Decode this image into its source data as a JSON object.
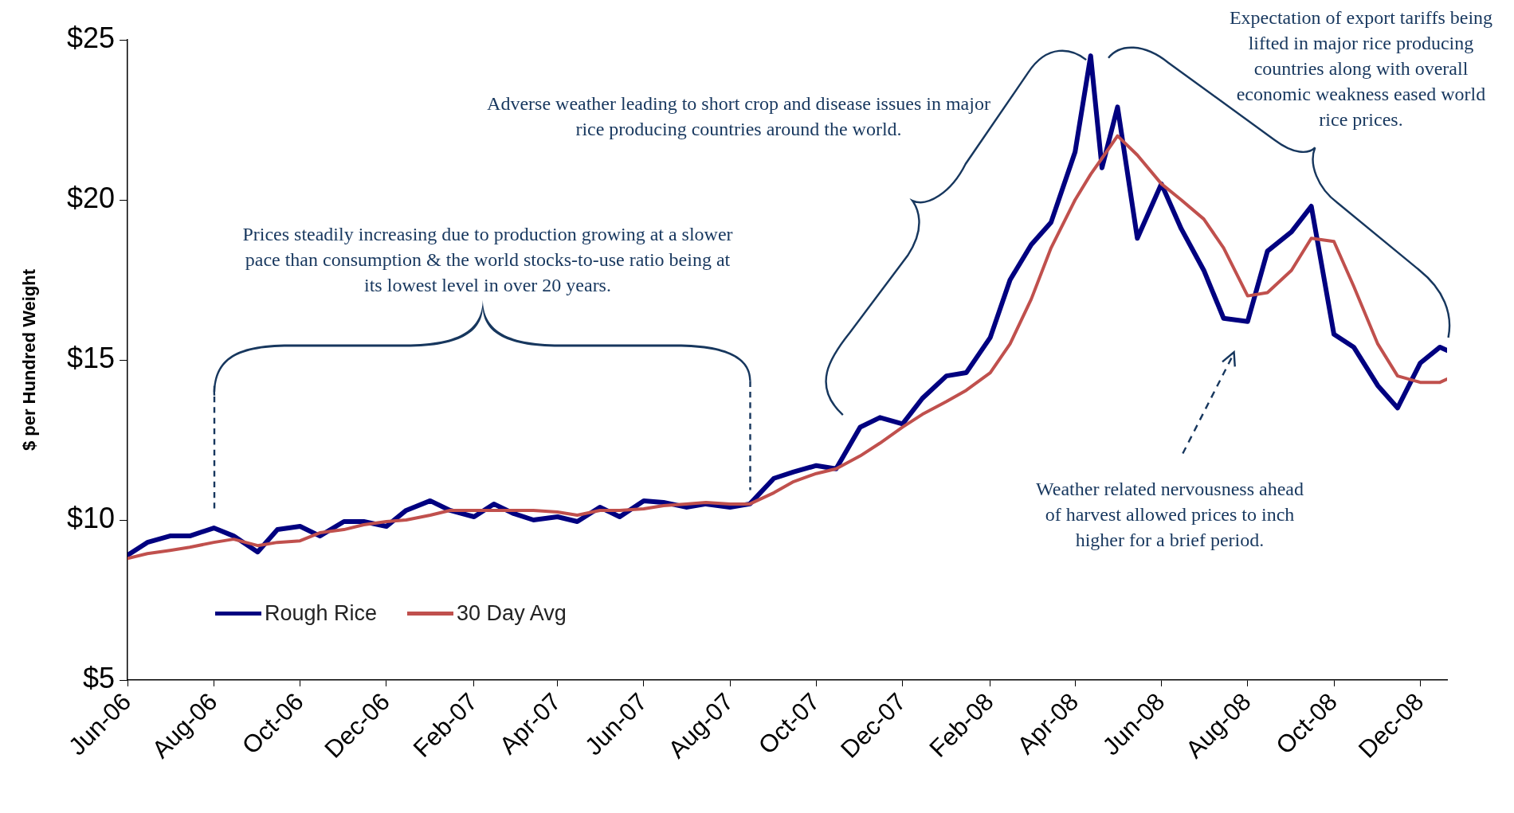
{
  "chart_data": {
    "type": "line",
    "ylabel": "$ per Hundred Weight",
    "x": [
      "2006-06-01",
      "2006-06-15",
      "2006-07-01",
      "2006-07-15",
      "2006-08-01",
      "2006-08-15",
      "2006-09-01",
      "2006-09-15",
      "2006-10-01",
      "2006-10-15",
      "2006-11-01",
      "2006-11-15",
      "2006-12-01",
      "2006-12-15",
      "2007-01-01",
      "2007-01-15",
      "2007-02-01",
      "2007-02-15",
      "2007-03-01",
      "2007-03-15",
      "2007-04-01",
      "2007-04-15",
      "2007-05-01",
      "2007-05-15",
      "2007-06-01",
      "2007-06-15",
      "2007-07-01",
      "2007-07-15",
      "2007-08-01",
      "2007-08-15",
      "2007-09-01",
      "2007-09-15",
      "2007-10-01",
      "2007-10-15",
      "2007-11-01",
      "2007-11-15",
      "2007-12-01",
      "2007-12-15",
      "2008-01-01",
      "2008-01-15",
      "2008-02-01",
      "2008-02-15",
      "2008-03-01",
      "2008-03-15",
      "2008-04-01",
      "2008-04-12",
      "2008-04-20",
      "2008-05-01",
      "2008-05-15",
      "2008-06-01",
      "2008-06-15",
      "2008-07-01",
      "2008-07-15",
      "2008-08-01",
      "2008-08-15",
      "2008-09-01",
      "2008-09-15",
      "2008-10-01",
      "2008-10-15",
      "2008-11-01",
      "2008-11-15",
      "2008-12-01",
      "2008-12-15",
      "2008-12-20"
    ],
    "series": [
      {
        "name": "Rough Rice",
        "color": "#000080",
        "values": [
          8.9,
          9.3,
          9.5,
          9.5,
          9.75,
          9.5,
          9.0,
          9.7,
          9.8,
          9.5,
          9.95,
          9.95,
          9.8,
          10.3,
          10.6,
          10.3,
          10.1,
          10.5,
          10.2,
          10.0,
          10.1,
          9.95,
          10.4,
          10.1,
          10.6,
          10.55,
          10.4,
          10.5,
          10.4,
          10.5,
          11.3,
          11.5,
          11.7,
          11.6,
          12.9,
          13.2,
          13.0,
          13.8,
          14.5,
          14.6,
          15.7,
          17.5,
          18.6,
          19.3,
          21.5,
          24.5,
          21.0,
          22.9,
          18.8,
          20.5,
          19.1,
          17.8,
          16.3,
          16.2,
          18.4,
          19.0,
          19.8,
          15.8,
          15.4,
          14.2,
          13.5,
          14.9,
          15.4,
          15.3
        ]
      },
      {
        "name": "30 Day Avg",
        "color": "#c0504d",
        "values": [
          8.8,
          8.95,
          9.05,
          9.15,
          9.3,
          9.4,
          9.2,
          9.3,
          9.35,
          9.6,
          9.7,
          9.85,
          9.95,
          10.0,
          10.15,
          10.3,
          10.3,
          10.3,
          10.3,
          10.3,
          10.25,
          10.15,
          10.3,
          10.3,
          10.35,
          10.45,
          10.5,
          10.55,
          10.5,
          10.5,
          10.85,
          11.2,
          11.45,
          11.6,
          12.0,
          12.4,
          12.9,
          13.3,
          13.7,
          14.05,
          14.6,
          15.5,
          16.9,
          18.5,
          20.0,
          20.8,
          21.3,
          22.0,
          21.4,
          20.5,
          20.0,
          19.4,
          18.5,
          17.0,
          17.1,
          17.8,
          18.8,
          18.7,
          17.3,
          15.5,
          14.5,
          14.3,
          14.3,
          14.4
        ]
      }
    ],
    "xlim": [
      "2006-06-01",
      "2008-12-20"
    ],
    "xticks": [
      {
        "value": "2006-06-01",
        "label": "Jun-06"
      },
      {
        "value": "2006-08-01",
        "label": "Aug-06"
      },
      {
        "value": "2006-10-01",
        "label": "Oct-06"
      },
      {
        "value": "2006-12-01",
        "label": "Dec-06"
      },
      {
        "value": "2007-02-01",
        "label": "Feb-07"
      },
      {
        "value": "2007-04-01",
        "label": "Apr-07"
      },
      {
        "value": "2007-06-01",
        "label": "Jun-07"
      },
      {
        "value": "2007-08-01",
        "label": "Aug-07"
      },
      {
        "value": "2007-10-01",
        "label": "Oct-07"
      },
      {
        "value": "2007-12-01",
        "label": "Dec-07"
      },
      {
        "value": "2008-02-01",
        "label": "Feb-08"
      },
      {
        "value": "2008-04-01",
        "label": "Apr-08"
      },
      {
        "value": "2008-06-01",
        "label": "Jun-08"
      },
      {
        "value": "2008-08-01",
        "label": "Aug-08"
      },
      {
        "value": "2008-10-01",
        "label": "Oct-08"
      },
      {
        "value": "2008-12-01",
        "label": "Dec-08"
      }
    ],
    "ylim": [
      5,
      25
    ],
    "yticks": [
      {
        "value": 5,
        "label": "$5"
      },
      {
        "value": 10,
        "label": "$10"
      },
      {
        "value": 15,
        "label": "$15"
      },
      {
        "value": 20,
        "label": "$20"
      },
      {
        "value": 25,
        "label": "$25"
      }
    ],
    "grid": false,
    "legend": "bottom left",
    "marker": "none",
    "line_style": "solid",
    "annotations": [
      "Prices steadily increasing due to production growing at a slower pace than consumption & the world stocks-to-use ratio being at its lowest level in over 20 years.",
      "Adverse weather leading to short crop and disease issues in major rice producing countries around the world.",
      "Expectation of export tariffs being lifted in major rice producing countries  along with overall economic weakness eased world rice prices.",
      "Weather related nervousness ahead of harvest allowed prices to inch higher for a brief period."
    ]
  }
}
